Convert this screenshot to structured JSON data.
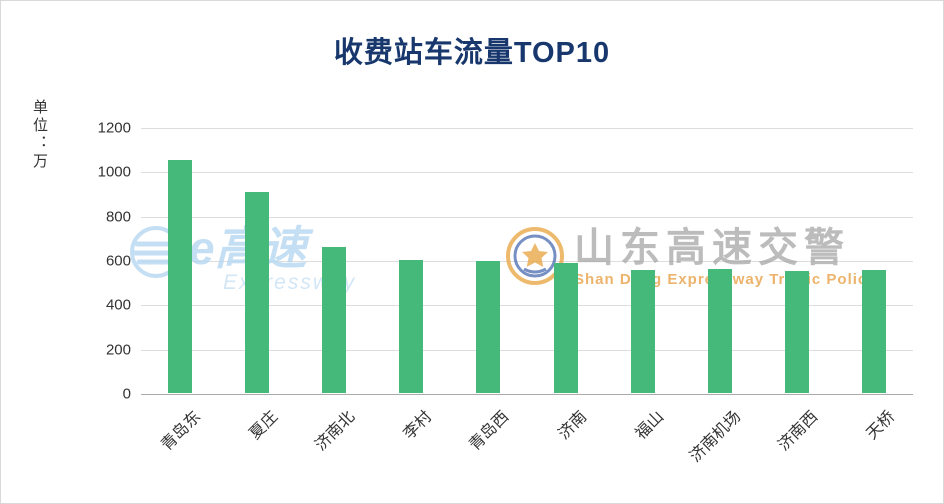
{
  "title": "收费站车流量TOP10",
  "y_axis_unit": "单位：万",
  "watermarks": {
    "left_title": "e高速",
    "left_subtitle": "Expressway",
    "right_title": "山东高速交警",
    "right_subtitle": "Shan Dong Expressway Traffic Police"
  },
  "colors": {
    "bar": "#44b97a",
    "title": "#17376d",
    "gridline": "#dddddd",
    "watermark_blue": "#b6d8f2",
    "watermark_gray": "#a6a6a6",
    "watermark_orange": "#e79a3a"
  },
  "chart_data": {
    "type": "bar",
    "title": "收费站车流量TOP10",
    "categories": [
      "青岛东",
      "夏庄",
      "济南北",
      "李村",
      "青岛西",
      "济南",
      "福山",
      "济南机场",
      "济南西",
      "天桥"
    ],
    "values": [
      1050,
      905,
      660,
      600,
      595,
      585,
      555,
      560,
      550,
      555
    ],
    "xlabel": "",
    "ylabel": "单位：万",
    "ylim": [
      0,
      1200
    ],
    "yticks": [
      0,
      200,
      400,
      600,
      800,
      1000,
      1200
    ],
    "grid": true,
    "legend": "none",
    "bar_color": "#44b97a"
  }
}
